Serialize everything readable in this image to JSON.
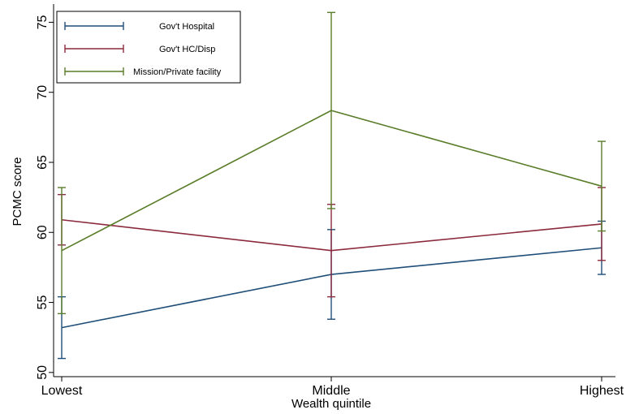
{
  "chart_data": {
    "type": "line",
    "xlabel": "Wealth quintile",
    "ylabel": "PCMC score",
    "categories": [
      "Lowest",
      "Middle",
      "Highest"
    ],
    "ylim": [
      49.7,
      76.3
    ],
    "yticks": [
      50,
      55,
      60,
      65,
      70,
      75
    ],
    "legend_position": "top-left",
    "grid": false,
    "series": [
      {
        "name": "Gov't Hospital",
        "color": "#1f4e79",
        "values": [
          53.2,
          57.0,
          58.9
        ],
        "ci_low": [
          51.0,
          53.8,
          57.0
        ],
        "ci_high": [
          55.4,
          60.2,
          60.8
        ]
      },
      {
        "name": "Gov't HC/Disp",
        "color": "#8b2a3c",
        "values": [
          60.9,
          58.7,
          60.6
        ],
        "ci_low": [
          59.1,
          55.4,
          58.0
        ],
        "ci_high": [
          62.7,
          62.0,
          63.2
        ]
      },
      {
        "name": "Mission/Private facility",
        "color": "#5a7d2a",
        "values": [
          58.7,
          68.7,
          63.3
        ],
        "ci_low": [
          54.2,
          61.7,
          60.1
        ],
        "ci_high": [
          63.2,
          75.7,
          66.5
        ]
      }
    ]
  }
}
